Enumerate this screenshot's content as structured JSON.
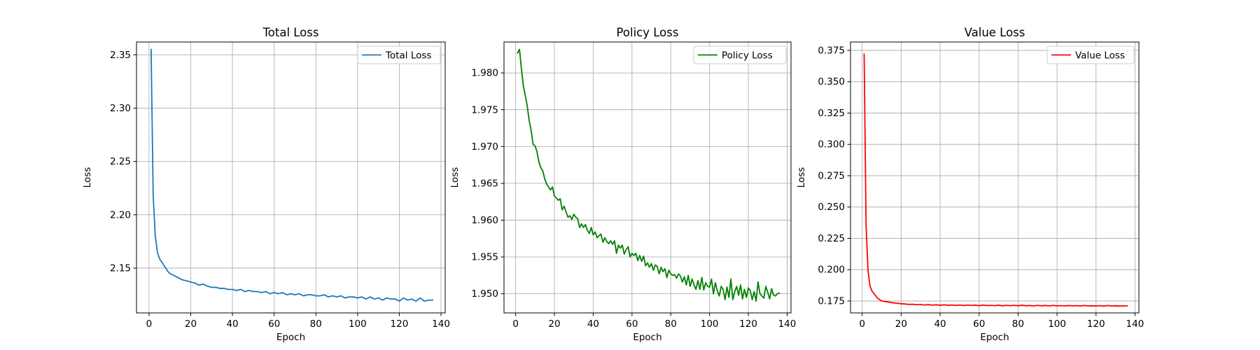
{
  "chart_data": [
    {
      "type": "line",
      "title": "Total Loss",
      "xlabel": "Epoch",
      "ylabel": "Loss",
      "xlim": [
        -6,
        142
      ],
      "ylim": [
        2.108,
        2.362
      ],
      "xticks": [
        0,
        20,
        40,
        60,
        80,
        100,
        120,
        140
      ],
      "yticks": [
        2.15,
        2.2,
        2.25,
        2.3,
        2.35
      ],
      "ytick_labels": [
        "2.15",
        "2.20",
        "2.25",
        "2.30",
        "2.35"
      ],
      "grid": true,
      "legend_position": "top-right",
      "series": [
        {
          "name": "Total Loss",
          "color": "#1f77b4",
          "x": [
            1,
            2,
            3,
            4,
            5,
            6,
            7,
            8,
            9,
            10,
            12,
            14,
            16,
            18,
            20,
            22,
            24,
            26,
            28,
            30,
            32,
            34,
            36,
            38,
            40,
            42,
            44,
            46,
            48,
            50,
            52,
            54,
            56,
            58,
            60,
            62,
            64,
            66,
            68,
            70,
            72,
            74,
            76,
            78,
            80,
            82,
            84,
            86,
            88,
            90,
            92,
            94,
            96,
            98,
            100,
            102,
            104,
            106,
            108,
            110,
            112,
            114,
            116,
            118,
            120,
            122,
            124,
            126,
            128,
            130,
            132,
            134,
            136
          ],
          "y": [
            2.355,
            2.218,
            2.18,
            2.165,
            2.159,
            2.156,
            2.153,
            2.15,
            2.147,
            2.145,
            2.143,
            2.141,
            2.139,
            2.138,
            2.137,
            2.136,
            2.134,
            2.135,
            2.133,
            2.132,
            2.132,
            2.131,
            2.131,
            2.13,
            2.13,
            2.129,
            2.13,
            2.128,
            2.129,
            2.128,
            2.128,
            2.127,
            2.128,
            2.126,
            2.127,
            2.126,
            2.127,
            2.125,
            2.126,
            2.125,
            2.126,
            2.124,
            2.125,
            2.125,
            2.124,
            2.124,
            2.125,
            2.123,
            2.124,
            2.123,
            2.124,
            2.122,
            2.123,
            2.123,
            2.122,
            2.123,
            2.121,
            2.123,
            2.121,
            2.122,
            2.12,
            2.122,
            2.121,
            2.121,
            2.119,
            2.122,
            2.12,
            2.121,
            2.119,
            2.122,
            2.119,
            2.12,
            2.12
          ]
        }
      ]
    },
    {
      "type": "line",
      "title": "Policy Loss",
      "xlabel": "Epoch",
      "ylabel": "Loss",
      "xlim": [
        -6,
        142
      ],
      "ylim": [
        1.9474,
        1.9842
      ],
      "xticks": [
        0,
        20,
        40,
        60,
        80,
        100,
        120,
        140
      ],
      "yticks": [
        1.95,
        1.955,
        1.96,
        1.965,
        1.97,
        1.975,
        1.98
      ],
      "ytick_labels": [
        "1.950",
        "1.955",
        "1.960",
        "1.965",
        "1.970",
        "1.975",
        "1.980"
      ],
      "grid": true,
      "legend_position": "top-right",
      "series": [
        {
          "name": "Policy Loss",
          "color": "#008000",
          "x": [
            1,
            2,
            3,
            4,
            5,
            6,
            7,
            8,
            9,
            10,
            11,
            12,
            13,
            14,
            15,
            16,
            17,
            18,
            19,
            20,
            21,
            22,
            23,
            24,
            25,
            26,
            27,
            28,
            29,
            30,
            31,
            32,
            33,
            34,
            35,
            36,
            37,
            38,
            39,
            40,
            41,
            42,
            43,
            44,
            45,
            46,
            47,
            48,
            49,
            50,
            51,
            52,
            53,
            54,
            55,
            56,
            57,
            58,
            59,
            60,
            61,
            62,
            63,
            64,
            65,
            66,
            67,
            68,
            69,
            70,
            71,
            72,
            73,
            74,
            75,
            76,
            77,
            78,
            79,
            80,
            81,
            82,
            83,
            84,
            85,
            86,
            87,
            88,
            89,
            90,
            91,
            92,
            93,
            94,
            95,
            96,
            97,
            98,
            99,
            100,
            101,
            102,
            103,
            104,
            105,
            106,
            107,
            108,
            109,
            110,
            111,
            112,
            113,
            114,
            115,
            116,
            117,
            118,
            119,
            120,
            121,
            122,
            123,
            124,
            125,
            126,
            127,
            128,
            129,
            130,
            131,
            132,
            133,
            134,
            135,
            136
          ],
          "y": [
            1.9827,
            1.9832,
            1.9805,
            1.9782,
            1.9769,
            1.9755,
            1.9735,
            1.9722,
            1.9703,
            1.9701,
            1.9693,
            1.9679,
            1.9671,
            1.9667,
            1.9656,
            1.9649,
            1.9645,
            1.9641,
            1.9645,
            1.9633,
            1.963,
            1.9627,
            1.9629,
            1.9614,
            1.9619,
            1.9611,
            1.9604,
            1.9606,
            1.9601,
            1.9608,
            1.9604,
            1.9602,
            1.959,
            1.9595,
            1.959,
            1.9594,
            1.9586,
            1.9582,
            1.959,
            1.958,
            1.9584,
            1.9576,
            1.9579,
            1.9581,
            1.957,
            1.9576,
            1.9571,
            1.9568,
            1.9572,
            1.9567,
            1.9572,
            1.9555,
            1.9566,
            1.9562,
            1.9566,
            1.9554,
            1.956,
            1.9564,
            1.955,
            1.9555,
            1.9552,
            1.9555,
            1.9545,
            1.9552,
            1.9544,
            1.9551,
            1.9538,
            1.9542,
            1.9536,
            1.9541,
            1.9532,
            1.9539,
            1.9537,
            1.9527,
            1.9536,
            1.953,
            1.9534,
            1.9522,
            1.9532,
            1.9527,
            1.9525,
            1.9526,
            1.9521,
            1.9527,
            1.9524,
            1.9516,
            1.9523,
            1.9512,
            1.9525,
            1.951,
            1.952,
            1.9512,
            1.9506,
            1.9518,
            1.9506,
            1.9522,
            1.9505,
            1.9515,
            1.951,
            1.9509,
            1.952,
            1.95,
            1.9515,
            1.9504,
            1.9497,
            1.951,
            1.9506,
            1.9492,
            1.9509,
            1.9495,
            1.952,
            1.9492,
            1.9503,
            1.951,
            1.9498,
            1.9512,
            1.9493,
            1.9506,
            1.9495,
            1.9508,
            1.9504,
            1.9492,
            1.9503,
            1.949,
            1.9516,
            1.95,
            1.9497,
            1.9494,
            1.951,
            1.9502,
            1.9493,
            1.9507,
            1.9498,
            1.9497,
            1.95,
            1.9501
          ]
        }
      ]
    },
    {
      "type": "line",
      "title": "Value Loss",
      "xlabel": "Epoch",
      "ylabel": "Loss",
      "xlim": [
        -6,
        142
      ],
      "ylim": [
        0.1655,
        0.3817
      ],
      "xticks": [
        0,
        20,
        40,
        60,
        80,
        100,
        120,
        140
      ],
      "yticks": [
        0.175,
        0.2,
        0.225,
        0.25,
        0.275,
        0.3,
        0.325,
        0.35,
        0.375
      ],
      "ytick_labels": [
        "0.175",
        "0.200",
        "0.225",
        "0.250",
        "0.275",
        "0.300",
        "0.325",
        "0.350",
        "0.375"
      ],
      "grid": true,
      "legend_position": "top-right",
      "series": [
        {
          "name": "Value Loss",
          "color": "#ff0000",
          "x": [
            1,
            2,
            3,
            4,
            5,
            6,
            7,
            8,
            9,
            10,
            12,
            14,
            16,
            18,
            20,
            22,
            24,
            26,
            28,
            30,
            32,
            34,
            36,
            38,
            40,
            42,
            44,
            46,
            48,
            50,
            52,
            54,
            56,
            58,
            60,
            62,
            64,
            66,
            68,
            70,
            72,
            74,
            76,
            78,
            80,
            82,
            84,
            86,
            88,
            90,
            92,
            94,
            96,
            98,
            100,
            102,
            104,
            106,
            108,
            110,
            112,
            114,
            116,
            118,
            120,
            122,
            124,
            126,
            128,
            130,
            132,
            134,
            136
          ],
          "y": [
            0.372,
            0.235,
            0.199,
            0.187,
            0.183,
            0.181,
            0.179,
            0.177,
            0.176,
            0.175,
            0.1745,
            0.174,
            0.1735,
            0.1732,
            0.1728,
            0.1726,
            0.1723,
            0.1724,
            0.172,
            0.1722,
            0.1718,
            0.1721,
            0.1717,
            0.172,
            0.1716,
            0.1719,
            0.1716,
            0.1718,
            0.1715,
            0.1718,
            0.1714,
            0.1717,
            0.1715,
            0.1716,
            0.1713,
            0.1717,
            0.1714,
            0.1715,
            0.1713,
            0.1716,
            0.1712,
            0.1715,
            0.1713,
            0.1715,
            0.1712,
            0.1716,
            0.1712,
            0.1714,
            0.1711,
            0.1715,
            0.1712,
            0.1714,
            0.1711,
            0.1715,
            0.1711,
            0.1713,
            0.171,
            0.1714,
            0.1711,
            0.1713,
            0.171,
            0.1714,
            0.1711,
            0.1712,
            0.171,
            0.1713,
            0.1709,
            0.1714,
            0.171,
            0.1712,
            0.1709,
            0.1711,
            0.1711
          ]
        }
      ]
    }
  ]
}
